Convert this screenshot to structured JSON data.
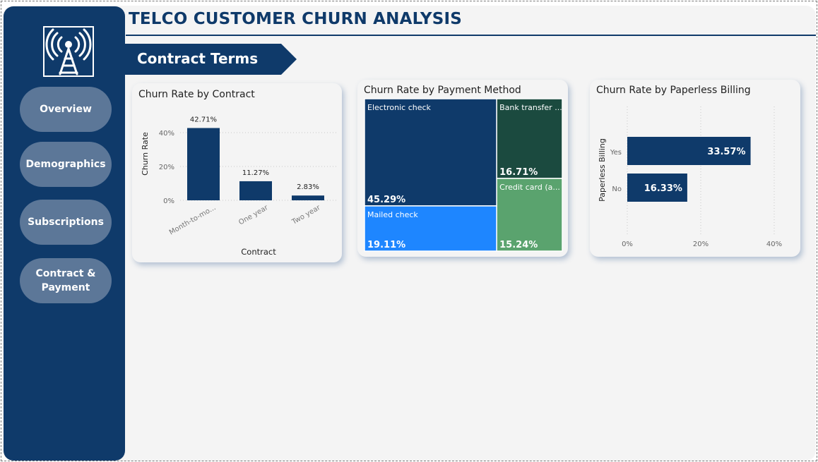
{
  "header": {
    "title": "TELCO CUSTOMER CHURN ANALYSIS",
    "section": "Contract Terms"
  },
  "sidebar": {
    "logo_icon": "radio-tower-icon",
    "items": [
      {
        "label": "Overview"
      },
      {
        "label": "Demographics"
      },
      {
        "label": "Subscriptions"
      },
      {
        "label": "Contract &\nPayment"
      }
    ]
  },
  "colors": {
    "navy": "#0f3a6a",
    "nav_button": "#5c7798",
    "bright_blue": "#1e86ff",
    "dark_green": "#1b4a3f",
    "light_green": "#5aa36e"
  },
  "chart_data": [
    {
      "type": "bar",
      "title": "Churn Rate by Contract",
      "categories": [
        "Month-to-mo...",
        "One year",
        "Two year"
      ],
      "values": [
        42.71,
        11.27,
        2.83
      ],
      "data_labels": [
        "42.71%",
        "11.27%",
        "2.83%"
      ],
      "xlabel": "Contract",
      "ylabel": "Churn Rate",
      "ylim": [
        0,
        45
      ],
      "yticks": [
        0,
        20,
        40
      ],
      "ytick_labels": [
        "0%",
        "20%",
        "40%"
      ],
      "grid": true
    },
    {
      "type": "treemap",
      "title": "Churn Rate by Payment Method",
      "items": [
        {
          "name": "Electronic check",
          "value": 45.29,
          "label": "45.29%",
          "color": "#0f3a6a"
        },
        {
          "name": "Mailed check",
          "value": 19.11,
          "label": "19.11%",
          "color": "#1e86ff"
        },
        {
          "name": "Bank transfer ...",
          "value": 16.71,
          "label": "16.71%",
          "color": "#1b4a3f"
        },
        {
          "name": "Credit card (a...",
          "value": 15.24,
          "label": "15.24%",
          "color": "#5aa36e"
        }
      ]
    },
    {
      "type": "bar",
      "orientation": "horizontal",
      "title": "Churn Rate by Paperless Billing",
      "categories": [
        "Yes",
        "No"
      ],
      "values": [
        33.57,
        16.33
      ],
      "data_labels": [
        "33.57%",
        "16.33%"
      ],
      "ylabel": "Paperless Billing",
      "xlim": [
        0,
        40
      ],
      "xticks": [
        0,
        20,
        40
      ],
      "xtick_labels": [
        "0%",
        "20%",
        "40%"
      ],
      "grid": true
    }
  ]
}
